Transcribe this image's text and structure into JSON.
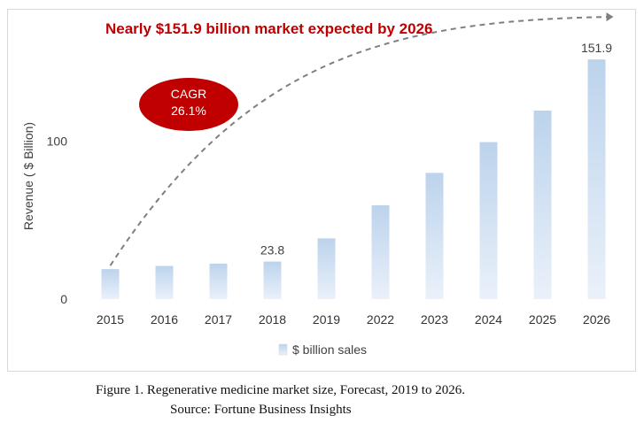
{
  "chart_data": {
    "type": "bar",
    "title": "Nearly $151.9 billion market expected by 2026",
    "ylabel": "Revenue ( $ Billion)",
    "xlabel": "",
    "categories": [
      "2015",
      "2016",
      "2017",
      "2018",
      "2019",
      "2022",
      "2023",
      "2024",
      "2025",
      "2026"
    ],
    "series": [
      {
        "name": "$ billion sales",
        "values": [
          19,
          21,
          22.5,
          23.8,
          38.5,
          59.5,
          80,
          99.5,
          119.5,
          151.9
        ]
      }
    ],
    "ylim": [
      0,
      175
    ],
    "yticks": [
      "0",
      "100"
    ],
    "data_labels": [
      {
        "category": "2018",
        "text": "23.8"
      },
      {
        "category": "2026",
        "text": "151.9"
      }
    ],
    "annotation": {
      "line1": "CAGR",
      "line2": "26.1%"
    },
    "trend_arrow": "dashed",
    "grid": false,
    "legend_position": "bottom",
    "colors": {
      "bar_top": "#bcd3ec",
      "bar_bottom": "#eaf1fa",
      "title": "#c00000",
      "ellipse": "#c00000",
      "arrow": "#7f7f7f"
    }
  },
  "caption": {
    "title": "Figure 1. Regenerative medicine market size, Forecast, 2019 to 2026.",
    "source": "Source: Fortune Business Insights"
  }
}
